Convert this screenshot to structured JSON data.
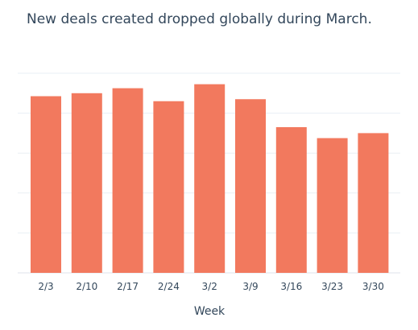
{
  "chart_data": {
    "type": "bar",
    "title": "New deals created dropped globally during March.",
    "xlabel": "Week",
    "ylabel": "",
    "categories": [
      "2/3",
      "2/10",
      "2/17",
      "2/24",
      "3/2",
      "3/9",
      "3/16",
      "3/23",
      "3/30"
    ],
    "values": [
      88.5,
      90,
      92.5,
      86,
      94.5,
      87,
      73,
      67.5,
      70
    ],
    "ylim": [
      0,
      100
    ],
    "grid": true,
    "bar_color": "#f2795e",
    "grid_color": "#eaeff4",
    "text_color": "#33475b"
  }
}
